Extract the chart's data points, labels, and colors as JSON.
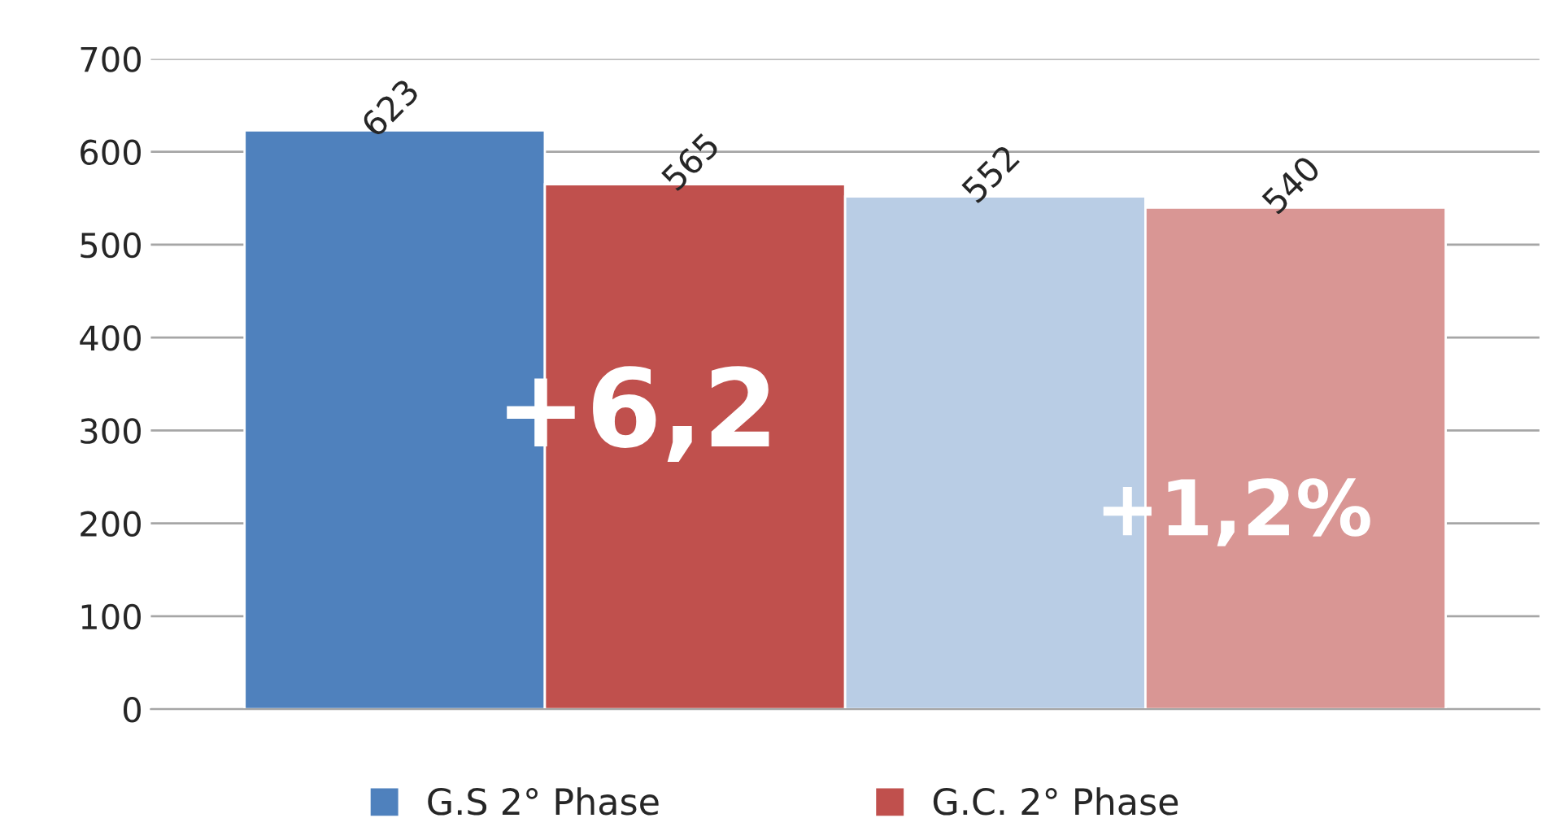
{
  "chart_data": {
    "type": "bar",
    "categories": [
      null
    ],
    "series": [
      {
        "name": "G.S 2° Phase",
        "color": "#4f81bd",
        "values": [
          623
        ]
      },
      {
        "name": "G.C. 2° Phase",
        "color": "#c0504d",
        "values": [
          565
        ]
      },
      {
        "color": "#b9cde5",
        "values": [
          552
        ]
      },
      {
        "color": "#d99694",
        "values": [
          540
        ]
      }
    ],
    "ylim": [
      0,
      700
    ],
    "yticks": [
      0,
      100,
      200,
      300,
      400,
      500,
      600,
      700
    ],
    "grid": "y",
    "legend": "bottom",
    "data_labels": true,
    "annotations": [
      "+6,2",
      "+1,2%"
    ]
  }
}
